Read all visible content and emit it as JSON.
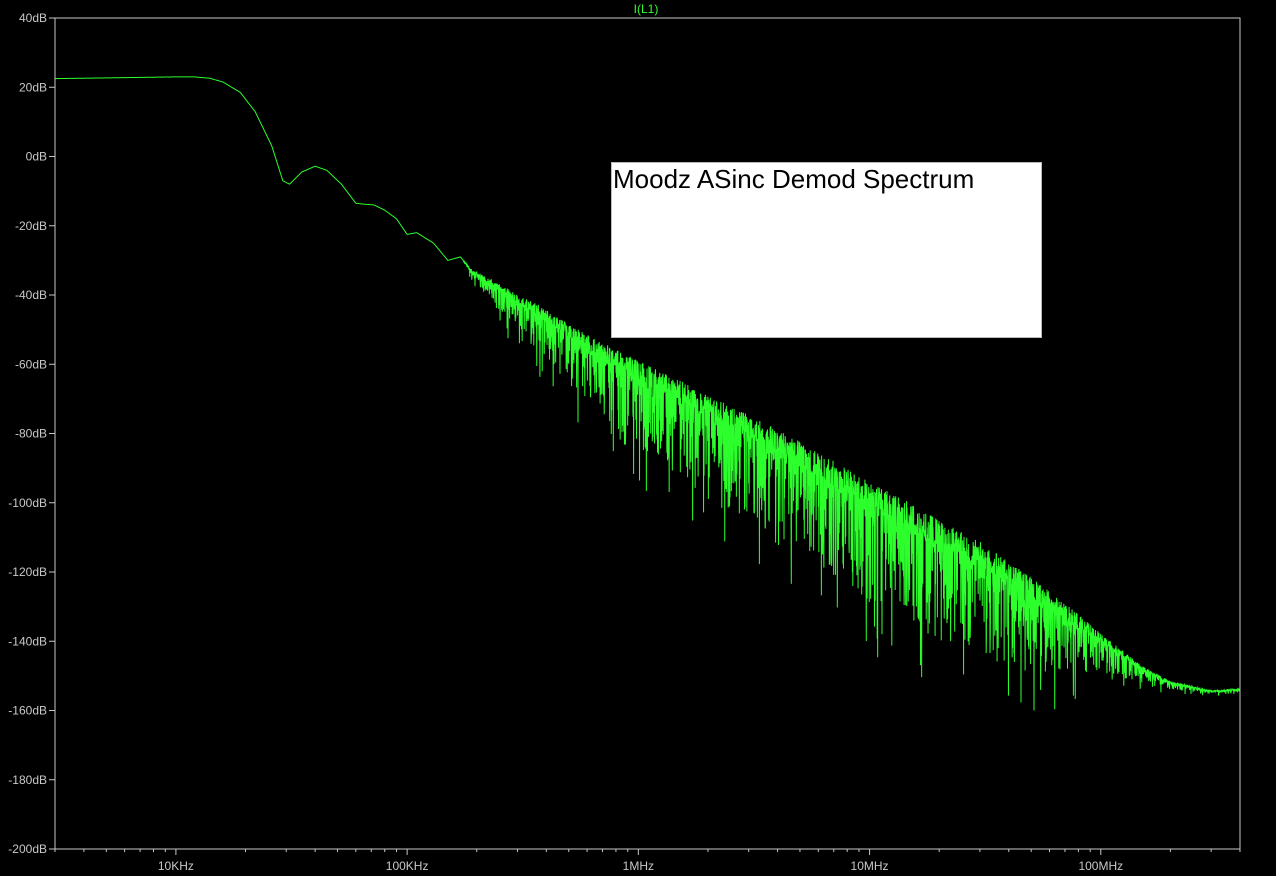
{
  "window": {
    "trace_label": "I(L1)",
    "annotation": "Moodz ASinc Demod Spectrum"
  },
  "colors": {
    "background": "#000000",
    "trace": "#2cff2c",
    "axis": "#c8c8c8",
    "grid": "#c8c8c8"
  },
  "chart_data": {
    "type": "line",
    "title": "I(L1)",
    "xlabel": "",
    "ylabel": "",
    "x_scale": "log",
    "x_unit": "Hz",
    "xlim": [
      3000,
      400000000
    ],
    "ylim": [
      -200,
      40
    ],
    "grid": false,
    "x_ticks": [
      {
        "value": 10000,
        "label": "10KHz"
      },
      {
        "value": 100000,
        "label": "100KHz"
      },
      {
        "value": 1000000,
        "label": "1MHz"
      },
      {
        "value": 10000000,
        "label": "10MHz"
      },
      {
        "value": 100000000,
        "label": "100MHz"
      }
    ],
    "y_ticks": [
      {
        "value": 40,
        "label": "40dB"
      },
      {
        "value": 20,
        "label": "20dB"
      },
      {
        "value": 0,
        "label": "0dB"
      },
      {
        "value": -20,
        "label": "-20dB"
      },
      {
        "value": -40,
        "label": "-40dB"
      },
      {
        "value": -60,
        "label": "-60dB"
      },
      {
        "value": -80,
        "label": "-80dB"
      },
      {
        "value": -100,
        "label": "-100dB"
      },
      {
        "value": -120,
        "label": "-120dB"
      },
      {
        "value": -140,
        "label": "-140dB"
      },
      {
        "value": -160,
        "label": "-160dB"
      },
      {
        "value": -180,
        "label": "-180dB"
      },
      {
        "value": -200,
        "label": "-200dB"
      }
    ],
    "series": [
      {
        "name": "I(L1)",
        "x": [
          3000,
          5000,
          8000,
          10000,
          12000,
          14000,
          16000,
          19000,
          22000,
          26000,
          29000,
          31000,
          35000,
          40000,
          45000,
          52000,
          60000,
          66000,
          72000,
          80000,
          90000,
          100000,
          110000,
          130000,
          150000,
          170000,
          190000,
          220000,
          300000,
          400000,
          500000,
          700000,
          1000000,
          1500000,
          2000000,
          3000000,
          5000000,
          7000000,
          10000000,
          15000000,
          20000000,
          30000000,
          50000000,
          70000000,
          100000000,
          150000000,
          200000000,
          300000000,
          400000000
        ],
        "values": [
          22.5,
          22.7,
          22.9,
          23.0,
          23.0,
          22.6,
          21.5,
          18.5,
          13.0,
          3.0,
          -7.0,
          -8.0,
          -4.5,
          -2.8,
          -4.0,
          -8.0,
          -13.5,
          -13.8,
          -14.0,
          -15.5,
          -18.0,
          -22.5,
          -22.0,
          -25.0,
          -30.0,
          -29.0,
          -33.0,
          -36.0,
          -42.0,
          -47.0,
          -52.0,
          -58.0,
          -64.0,
          -70.0,
          -75.0,
          -81.0,
          -89.0,
          -95.0,
          -101.0,
          -107.0,
          -112.0,
          -118.0,
          -127.0,
          -133.0,
          -140.0,
          -148.0,
          -152.0,
          -154.5,
          -154.0
        ],
        "noise_spread_db": [
          0,
          0,
          0,
          0,
          0,
          0,
          0,
          0,
          0,
          0,
          0,
          0,
          0,
          0,
          0,
          0,
          0,
          0,
          0,
          0,
          0,
          0,
          0,
          0,
          0,
          0,
          2,
          5,
          9,
          12,
          14,
          17,
          20,
          22,
          24,
          26,
          27,
          28,
          28,
          28,
          28,
          27,
          22,
          16,
          9,
          4,
          2,
          1,
          1
        ],
        "color": "#2cff2c"
      }
    ]
  }
}
